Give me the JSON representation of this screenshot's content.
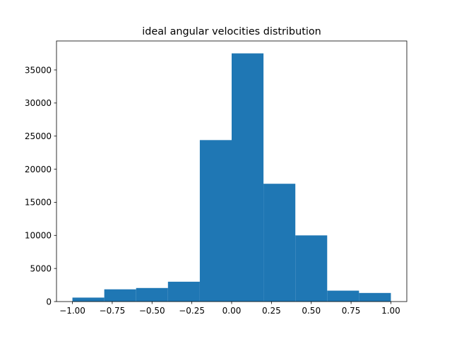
{
  "chart_data": {
    "type": "bar",
    "title": "ideal angular velocities distribution",
    "xlabel": "",
    "ylabel": "",
    "bins": [
      {
        "x0": -1.0,
        "x1": -0.8,
        "count": 600
      },
      {
        "x0": -0.8,
        "x1": -0.6,
        "count": 1850
      },
      {
        "x0": -0.6,
        "x1": -0.4,
        "count": 2050
      },
      {
        "x0": -0.4,
        "x1": -0.2,
        "count": 3000
      },
      {
        "x0": -0.2,
        "x1": 0.0,
        "count": 24400
      },
      {
        "x0": 0.0,
        "x1": 0.2,
        "count": 37500
      },
      {
        "x0": 0.2,
        "x1": 0.4,
        "count": 17800
      },
      {
        "x0": 0.4,
        "x1": 0.6,
        "count": 10000
      },
      {
        "x0": 0.6,
        "x1": 0.8,
        "count": 1650
      },
      {
        "x0": 0.8,
        "x1": 1.0,
        "count": 1300
      }
    ],
    "xlim": [
      -1.1,
      1.1
    ],
    "ylim": [
      0,
      39375
    ],
    "xticks": [
      -1.0,
      -0.75,
      -0.5,
      -0.25,
      0.0,
      0.25,
      0.5,
      0.75,
      1.0
    ],
    "xtick_labels": [
      "−1.00",
      "−0.75",
      "−0.50",
      "−0.25",
      "0.00",
      "0.25",
      "0.50",
      "0.75",
      "1.00"
    ],
    "yticks": [
      0,
      5000,
      10000,
      15000,
      20000,
      25000,
      30000,
      35000
    ],
    "ytick_labels": [
      "0",
      "5000",
      "10000",
      "15000",
      "20000",
      "25000",
      "30000",
      "35000"
    ],
    "grid": false,
    "bar_color": "#1f77b4"
  }
}
